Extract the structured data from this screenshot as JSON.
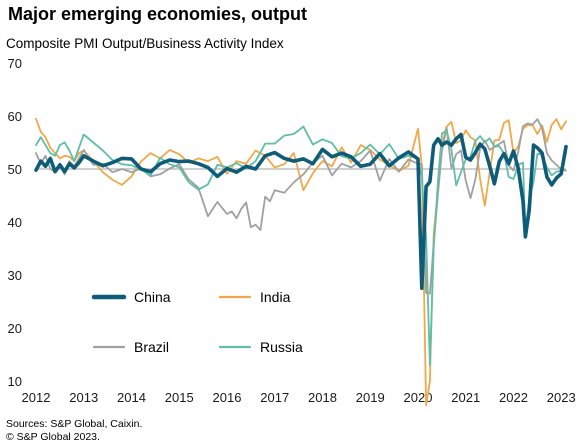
{
  "title": "Major emerging economies, output",
  "subtitle": "Composite  PMI Output/Business  Activity Index",
  "footer": {
    "sources": "Sources: S&P Global, Caixin.",
    "copyright": "© S&P Global 2023."
  },
  "chart_data": {
    "type": "line",
    "title": "Major emerging economies, output",
    "subtitle": "Composite  PMI Output/Business  Activity Index",
    "xlabel": "",
    "ylabel": "",
    "xlim": [
      2012,
      2023.1
    ],
    "ylim": [
      10,
      70
    ],
    "x_ticks": [
      "2012",
      "2013",
      "2014",
      "2015",
      "2016",
      "2017",
      "2018",
      "2019",
      "2020",
      "2021",
      "2022",
      "2023"
    ],
    "y_ticks": [
      10,
      20,
      30,
      40,
      50,
      60,
      70
    ],
    "reference_line": 50,
    "grid": false,
    "legend": "inside, lower-left",
    "series": [
      {
        "name": "China",
        "color": "#0e5c78",
        "x": [
          2012.0,
          2012.1,
          2012.2,
          2012.3,
          2012.4,
          2012.5,
          2012.6,
          2012.7,
          2012.8,
          2012.9,
          2013.0,
          2013.2,
          2013.4,
          2013.6,
          2013.8,
          2014.0,
          2014.2,
          2014.4,
          2014.6,
          2014.8,
          2015.0,
          2015.2,
          2015.4,
          2015.6,
          2015.8,
          2016.0,
          2016.2,
          2016.4,
          2016.6,
          2016.8,
          2017.0,
          2017.2,
          2017.4,
          2017.6,
          2017.8,
          2018.0,
          2018.2,
          2018.4,
          2018.6,
          2018.8,
          2019.0,
          2019.2,
          2019.4,
          2019.6,
          2019.8,
          2020.0,
          2020.08,
          2020.17,
          2020.25,
          2020.33,
          2020.42,
          2020.5,
          2020.6,
          2020.7,
          2020.8,
          2020.9,
          2021.0,
          2021.1,
          2021.2,
          2021.3,
          2021.4,
          2021.5,
          2021.6,
          2021.7,
          2021.8,
          2021.9,
          2022.0,
          2022.1,
          2022.2,
          2022.25,
          2022.33,
          2022.42,
          2022.5,
          2022.6,
          2022.7,
          2022.8,
          2022.9,
          2023.0,
          2023.1
        ],
        "y": [
          49.8,
          51.5,
          50.5,
          52.0,
          49.5,
          50.8,
          49.5,
          51.0,
          50.2,
          51.2,
          52.5,
          51.5,
          50.6,
          51.2,
          52.0,
          51.9,
          50.0,
          49.5,
          51.0,
          51.7,
          51.4,
          51.5,
          51.0,
          50.3,
          48.6,
          50.1,
          49.4,
          50.5,
          50.0,
          52.5,
          53.1,
          52.0,
          51.5,
          51.9,
          51.0,
          53.7,
          52.3,
          53.0,
          52.3,
          50.5,
          50.9,
          52.9,
          50.6,
          52.1,
          53.2,
          51.9,
          27.5,
          46.7,
          47.6,
          54.5,
          55.7,
          54.5,
          55.1,
          54.5,
          55.7,
          56.5,
          52.2,
          51.7,
          53.1,
          54.7,
          53.8,
          50.6,
          47.2,
          51.4,
          52.9,
          51.0,
          53.4,
          50.1,
          43.9,
          37.2,
          42.2,
          54.5,
          54.0,
          53.0,
          48.5,
          47.0,
          48.3,
          49.1,
          54.2
        ]
      },
      {
        "name": "India",
        "color": "#f0a848",
        "x": [
          2012.0,
          2012.1,
          2012.2,
          2012.3,
          2012.4,
          2012.5,
          2012.6,
          2012.7,
          2012.8,
          2012.9,
          2013.0,
          2013.2,
          2013.4,
          2013.6,
          2013.8,
          2014.0,
          2014.2,
          2014.4,
          2014.6,
          2014.8,
          2015.0,
          2015.2,
          2015.4,
          2015.6,
          2015.8,
          2016.0,
          2016.2,
          2016.4,
          2016.6,
          2016.8,
          2017.0,
          2017.2,
          2017.4,
          2017.6,
          2017.8,
          2018.0,
          2018.2,
          2018.4,
          2018.6,
          2018.8,
          2019.0,
          2019.2,
          2019.4,
          2019.6,
          2019.8,
          2020.0,
          2020.08,
          2020.17,
          2020.25,
          2020.33,
          2020.42,
          2020.5,
          2020.6,
          2020.7,
          2020.8,
          2020.9,
          2021.0,
          2021.1,
          2021.2,
          2021.3,
          2021.4,
          2021.5,
          2021.6,
          2021.7,
          2021.8,
          2021.9,
          2022.0,
          2022.1,
          2022.2,
          2022.3,
          2022.4,
          2022.5,
          2022.6,
          2022.7,
          2022.8,
          2022.9,
          2023.0,
          2023.1
        ],
        "y": [
          59.5,
          57.0,
          56.0,
          54.0,
          53.0,
          52.0,
          52.5,
          52.3,
          51.5,
          53.0,
          53.5,
          51.5,
          49.4,
          48.0,
          47.0,
          48.6,
          51.4,
          53.0,
          52.0,
          53.6,
          52.8,
          51.2,
          52.0,
          51.5,
          52.3,
          49.1,
          51.5,
          51.0,
          53.5,
          52.5,
          50.3,
          50.9,
          53.0,
          46.0,
          49.2,
          51.5,
          50.5,
          54.1,
          51.2,
          54.5,
          53.6,
          51.8,
          50.7,
          49.6,
          50.6,
          57.6,
          50.6,
          5.4,
          10.0,
          37.8,
          46.0,
          54.6,
          58.0,
          58.9,
          54.9,
          55.4,
          57.3,
          56.0,
          55.4,
          48.1,
          43.1,
          49.2,
          55.4,
          55.5,
          58.7,
          59.2,
          53.0,
          54.3,
          57.6,
          58.3,
          58.2,
          56.6,
          58.2,
          55.1,
          58.3,
          59.4,
          57.5,
          59.0
        ]
      },
      {
        "name": "Brazil",
        "color": "#a0a0a0",
        "x": [
          2012.0,
          2012.1,
          2012.2,
          2012.3,
          2012.4,
          2012.5,
          2012.6,
          2012.7,
          2012.8,
          2012.9,
          2013.0,
          2013.2,
          2013.4,
          2013.6,
          2013.8,
          2014.0,
          2014.2,
          2014.4,
          2014.6,
          2014.8,
          2015.0,
          2015.2,
          2015.4,
          2015.6,
          2015.8,
          2016.0,
          2016.1,
          2016.2,
          2016.3,
          2016.4,
          2016.5,
          2016.6,
          2016.7,
          2016.8,
          2016.9,
          2017.0,
          2017.2,
          2017.4,
          2017.6,
          2017.8,
          2018.0,
          2018.2,
          2018.4,
          2018.6,
          2018.8,
          2019.0,
          2019.2,
          2019.4,
          2019.6,
          2019.8,
          2020.0,
          2020.08,
          2020.17,
          2020.25,
          2020.33,
          2020.42,
          2020.5,
          2020.6,
          2020.7,
          2020.8,
          2020.9,
          2021.0,
          2021.1,
          2021.2,
          2021.3,
          2021.4,
          2021.5,
          2021.6,
          2021.7,
          2021.8,
          2021.9,
          2022.0,
          2022.1,
          2022.2,
          2022.3,
          2022.4,
          2022.5,
          2022.6,
          2022.7,
          2022.8,
          2022.9,
          2023.0,
          2023.1
        ],
        "y": [
          53.0,
          51.0,
          52.5,
          50.0,
          49.5,
          51.0,
          49.0,
          51.5,
          50.5,
          52.0,
          53.6,
          50.8,
          51.0,
          49.4,
          50.0,
          49.4,
          50.1,
          48.6,
          49.0,
          50.1,
          50.9,
          48.0,
          46.5,
          41.1,
          43.8,
          41.5,
          42.0,
          40.7,
          42.5,
          43.7,
          39.0,
          39.5,
          38.5,
          44.8,
          43.9,
          46.0,
          45.5,
          47.5,
          49.0,
          51.2,
          52.5,
          48.8,
          51.0,
          50.3,
          51.5,
          53.5,
          47.8,
          51.9,
          49.5,
          51.8,
          51.0,
          50.9,
          26.6,
          26.5,
          35.9,
          45.4,
          53.3,
          57.8,
          50.1,
          52.8,
          53.5,
          47.9,
          44.5,
          48.0,
          53.9,
          55.4,
          53.6,
          54.2,
          54.7,
          55.3,
          50.7,
          49.7,
          53.3,
          58.1,
          58.6,
          58.4,
          59.4,
          57.7,
          53.0,
          51.6,
          50.8,
          49.9,
          49.7
        ]
      },
      {
        "name": "Russia",
        "color": "#5fbfa6",
        "x": [
          2012.0,
          2012.1,
          2012.2,
          2012.3,
          2012.4,
          2012.5,
          2012.6,
          2012.7,
          2012.8,
          2012.9,
          2013.0,
          2013.2,
          2013.4,
          2013.6,
          2013.8,
          2014.0,
          2014.2,
          2014.4,
          2014.6,
          2014.8,
          2015.0,
          2015.2,
          2015.4,
          2015.6,
          2015.8,
          2016.0,
          2016.2,
          2016.4,
          2016.6,
          2016.8,
          2017.0,
          2017.2,
          2017.4,
          2017.6,
          2017.8,
          2018.0,
          2018.2,
          2018.4,
          2018.6,
          2018.8,
          2019.0,
          2019.2,
          2019.4,
          2019.6,
          2019.8,
          2020.0,
          2020.08,
          2020.17,
          2020.25,
          2020.33,
          2020.42,
          2020.5,
          2020.6,
          2020.7,
          2020.8,
          2020.9,
          2021.0,
          2021.1,
          2021.2,
          2021.3,
          2021.4,
          2021.5,
          2021.6,
          2021.7,
          2021.8,
          2021.9,
          2022.0,
          2022.1,
          2022.2,
          2022.25,
          2022.33,
          2022.42,
          2022.5,
          2022.6,
          2022.7,
          2022.8,
          2022.9,
          2023.0,
          2023.1
        ],
        "y": [
          54.5,
          56.0,
          54.5,
          53.0,
          52.5,
          54.5,
          55.0,
          53.5,
          51.5,
          54.0,
          56.5,
          55.0,
          53.5,
          51.7,
          50.9,
          50.7,
          49.9,
          48.8,
          52.1,
          50.9,
          50.3,
          47.5,
          46.1,
          47.1,
          50.8,
          50.3,
          51.1,
          50.1,
          51.5,
          54.8,
          54.8,
          56.3,
          56.6,
          58.0,
          54.6,
          55.6,
          54.9,
          52.4,
          52.0,
          53.0,
          54.6,
          52.8,
          54.7,
          51.9,
          52.5,
          52.0,
          48.5,
          37.2,
          12.9,
          35.0,
          47.8,
          56.7,
          57.3,
          53.7,
          46.9,
          49.4,
          51.8,
          52.3,
          55.3,
          56.2,
          55.0,
          55.8,
          54.2,
          54.3,
          53.0,
          48.5,
          48.1,
          50.8,
          51.2,
          37.7,
          44.4,
          47.5,
          52.9,
          52.7,
          50.3,
          48.8,
          49.5,
          49.7,
          53.1
        ]
      }
    ]
  }
}
